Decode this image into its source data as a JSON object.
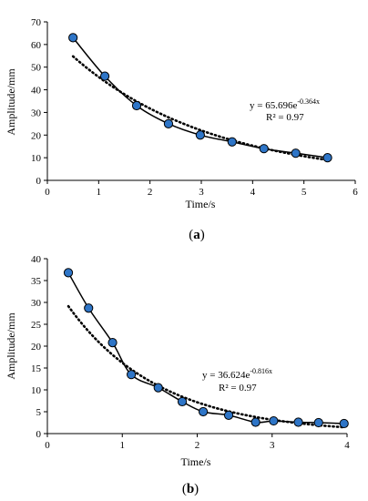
{
  "chart_data": [
    {
      "type": "scatter",
      "panel_label": "(a)",
      "xlabel": "Time/s",
      "ylabel": "Amplitude/mm",
      "xlim": [
        0,
        6
      ],
      "ylim": [
        0,
        70
      ],
      "xticks": [
        0,
        1,
        2,
        3,
        4,
        5,
        6
      ],
      "yticks": [
        0,
        10,
        20,
        30,
        40,
        50,
        60,
        70
      ],
      "series": [
        {
          "kind": "measured",
          "marker_color": "#2e75c7",
          "x": [
            0.5,
            1.12,
            1.74,
            2.36,
            2.98,
            3.6,
            4.22,
            4.84,
            5.46
          ],
          "y": [
            63,
            46,
            33,
            25,
            20,
            17,
            14,
            12,
            10
          ]
        }
      ],
      "trendline": {
        "kind": "exponential",
        "a": 65.696,
        "b": -0.364,
        "x_range": [
          0.5,
          5.46
        ]
      },
      "equation": {
        "base": "y = 65.696e",
        "exponent": "-0.364x"
      },
      "r2": "R² = 0.97"
    },
    {
      "type": "scatter",
      "panel_label": "(b)",
      "xlabel": "Time/s",
      "ylabel": "Amplitude/mm",
      "xlim": [
        0,
        4
      ],
      "ylim": [
        0,
        40
      ],
      "xticks": [
        0,
        1,
        2,
        3,
        4
      ],
      "yticks": [
        0,
        5,
        10,
        15,
        20,
        25,
        30,
        35,
        40
      ],
      "series": [
        {
          "kind": "measured",
          "marker_color": "#2e75c7",
          "x": [
            0.28,
            0.55,
            0.87,
            1.12,
            1.48,
            1.8,
            2.08,
            2.42,
            2.78,
            3.02,
            3.35,
            3.62,
            3.96
          ],
          "y": [
            36.8,
            28.7,
            20.8,
            13.5,
            10.5,
            7.3,
            5.0,
            4.2,
            2.6,
            2.9,
            2.6,
            2.5,
            2.3
          ]
        }
      ],
      "trendline": {
        "kind": "exponential",
        "a": 36.624,
        "b": -0.816,
        "x_range": [
          0.28,
          3.96
        ]
      },
      "equation": {
        "base": "y = 36.624e",
        "exponent": "-0.816x"
      },
      "r2": "R² = 0.97"
    }
  ]
}
